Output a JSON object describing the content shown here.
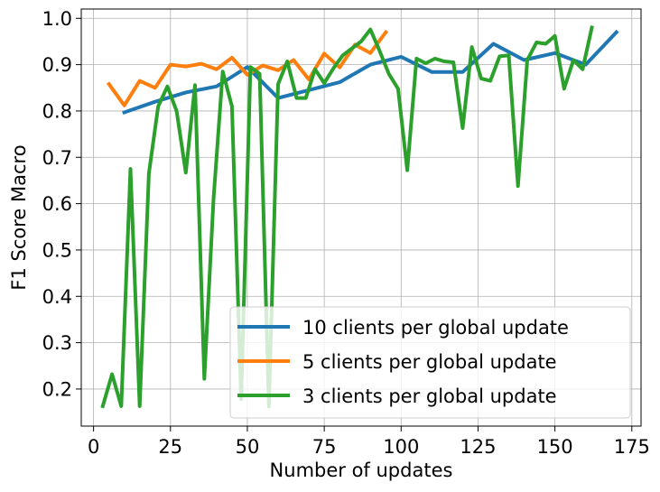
{
  "chart_data": {
    "type": "line",
    "title": "",
    "xlabel": "Number of updates",
    "ylabel": "F1 Score Macro",
    "xlim": [
      -4,
      178
    ],
    "ylim": [
      0.12,
      1.02
    ],
    "xticks": [
      0,
      25,
      50,
      75,
      100,
      125,
      150,
      175
    ],
    "yticks": [
      0.2,
      0.3,
      0.4,
      0.5,
      0.6,
      0.7,
      0.8,
      0.9,
      1.0
    ],
    "xtick_labels": [
      "0",
      "25",
      "50",
      "75",
      "100",
      "125",
      "150",
      "175"
    ],
    "ytick_labels": [
      "0.2",
      "0.3",
      "0.4",
      "0.5",
      "0.6",
      "0.7",
      "0.8",
      "0.9",
      "1.0"
    ],
    "grid": true,
    "legend_position": "lower-right",
    "series": [
      {
        "name": "10 clients per global update",
        "color": "#1f77b4",
        "x": [
          10,
          20,
          30,
          40,
          50,
          60,
          70,
          80,
          90,
          100,
          110,
          120,
          130,
          140,
          150,
          160,
          170
        ],
        "y": [
          0.797,
          0.82,
          0.84,
          0.853,
          0.895,
          0.828,
          0.845,
          0.862,
          0.9,
          0.917,
          0.884,
          0.884,
          0.945,
          0.91,
          0.925,
          0.9,
          0.97
        ]
      },
      {
        "name": "5 clients per global update",
        "color": "#ff7f0e",
        "x": [
          5,
          10,
          15,
          20,
          25,
          30,
          35,
          40,
          45,
          50,
          55,
          60,
          65,
          70,
          75,
          80,
          85,
          90,
          95
        ],
        "y": [
          0.858,
          0.812,
          0.865,
          0.85,
          0.9,
          0.896,
          0.902,
          0.89,
          0.915,
          0.878,
          0.898,
          0.888,
          0.91,
          0.868,
          0.924,
          0.894,
          0.943,
          0.925,
          0.97
        ]
      },
      {
        "name": "3 clients per global update",
        "color": "#2ca02c",
        "x": [
          3,
          6,
          9,
          12,
          15,
          18,
          21,
          24,
          27,
          30,
          33,
          36,
          39,
          42,
          45,
          48,
          51,
          54,
          57,
          60,
          63,
          66,
          69,
          72,
          75,
          78,
          81,
          84,
          87,
          90,
          93,
          96,
          99,
          102,
          105,
          108,
          111,
          114,
          117,
          120,
          123,
          126,
          129,
          132,
          135,
          138,
          141,
          144,
          147,
          150,
          153,
          156,
          159,
          162
        ],
        "y": [
          0.163,
          0.232,
          0.163,
          0.675,
          0.163,
          0.665,
          0.81,
          0.853,
          0.8,
          0.667,
          0.856,
          0.222,
          0.61,
          0.885,
          0.81,
          0.178,
          0.895,
          0.88,
          0.162,
          0.858,
          0.907,
          0.828,
          0.828,
          0.89,
          0.86,
          0.892,
          0.92,
          0.935,
          0.95,
          0.976,
          0.93,
          0.88,
          0.848,
          0.672,
          0.913,
          0.903,
          0.913,
          0.907,
          0.905,
          0.763,
          0.938,
          0.87,
          0.865,
          0.918,
          0.92,
          0.638,
          0.91,
          0.948,
          0.945,
          0.962,
          0.848,
          0.91,
          0.89,
          0.98
        ]
      }
    ]
  }
}
